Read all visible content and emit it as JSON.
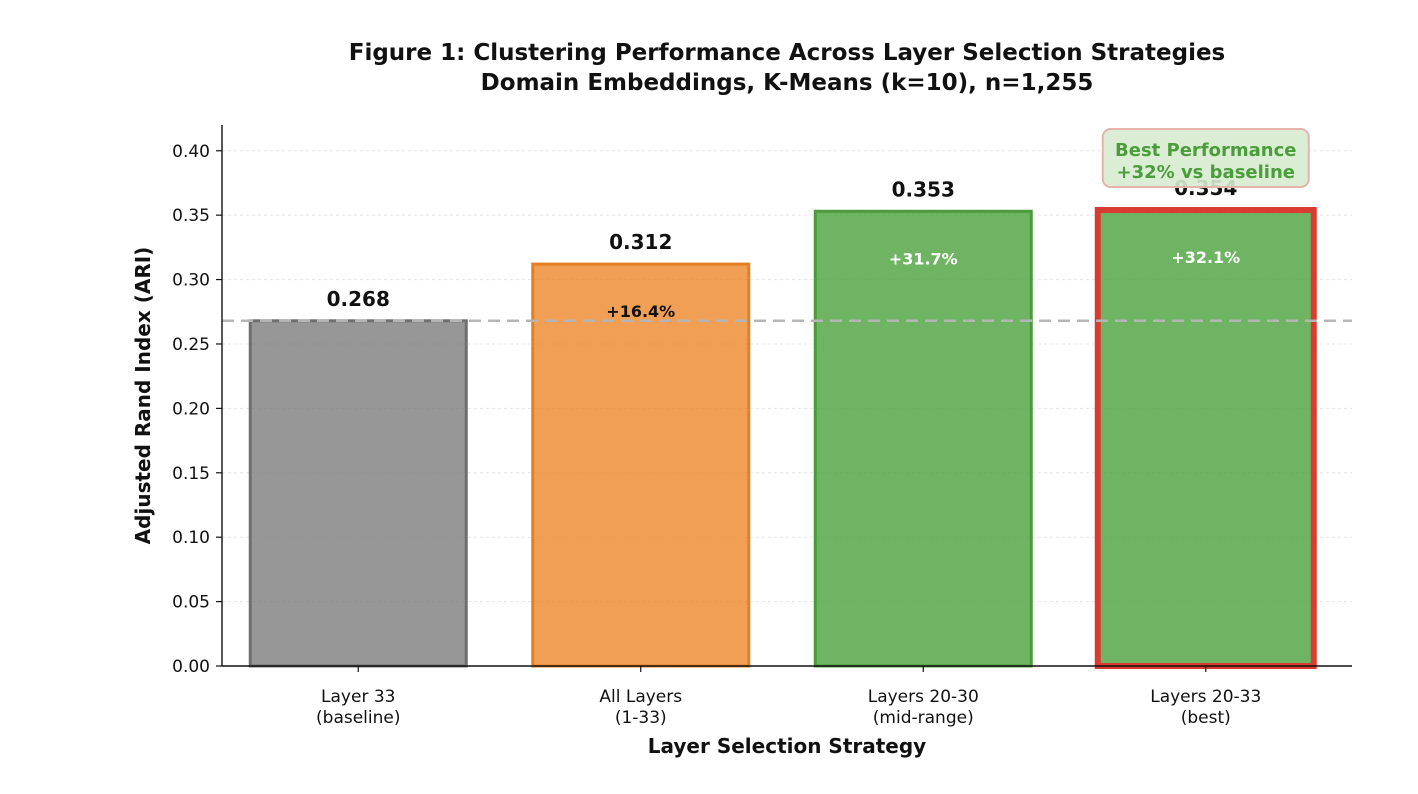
{
  "chart_data": {
    "type": "bar",
    "title": "Figure 1: Clustering Performance Across Layer Selection Strategies",
    "subtitle": "Domain Embeddings, K-Means (k=10), n=1,255",
    "xlabel": "Layer Selection Strategy",
    "ylabel": "Adjusted Rand Index (ARI)",
    "ylim": [
      0,
      0.42
    ],
    "yticks": [
      {
        "value": 0.0,
        "label": "0.00"
      },
      {
        "value": 0.05,
        "label": "0.05"
      },
      {
        "value": 0.1,
        "label": "0.10"
      },
      {
        "value": 0.15,
        "label": "0.15"
      },
      {
        "value": 0.2,
        "label": "0.20"
      },
      {
        "value": 0.25,
        "label": "0.25"
      },
      {
        "value": 0.3,
        "label": "0.30"
      },
      {
        "value": 0.35,
        "label": "0.35"
      },
      {
        "value": 0.4,
        "label": "0.40"
      }
    ],
    "grid": true,
    "baseline": 0.268,
    "bars": [
      {
        "line1": "Layer 33",
        "line2": "(baseline)",
        "value": 0.268,
        "value_label": "0.268",
        "improvement": "",
        "color": "#808080",
        "edge": "#6f6f6f",
        "highlight": false,
        "improvement_color": ""
      },
      {
        "line1": "All Layers",
        "line2": "(1-33)",
        "value": 0.312,
        "value_label": "0.312",
        "improvement": "+16.4%",
        "color": "#ee8a2e",
        "edge": "#e67e22",
        "highlight": false,
        "improvement_color": "#111111"
      },
      {
        "line1": "Layers 20-30",
        "line2": "(mid-range)",
        "value": 0.353,
        "value_label": "0.353",
        "improvement": "+31.7%",
        "color": "#4ea43f",
        "edge": "#4c9a3c",
        "highlight": false,
        "improvement_color": "#ffffff"
      },
      {
        "line1": "Layers 20-33",
        "line2": "(best)",
        "value": 0.354,
        "value_label": "0.354",
        "improvement": "+32.1%",
        "color": "#4ea43f",
        "edge": "#d93b30",
        "highlight": true,
        "improvement_color": "#ffffff"
      }
    ],
    "annotation": {
      "line1": "Best Performance",
      "line2": "+32% vs baseline",
      "text_color": "#4a9e3a",
      "box_fill": "#d8ebd2",
      "box_edge": "#e3b3ac"
    }
  }
}
